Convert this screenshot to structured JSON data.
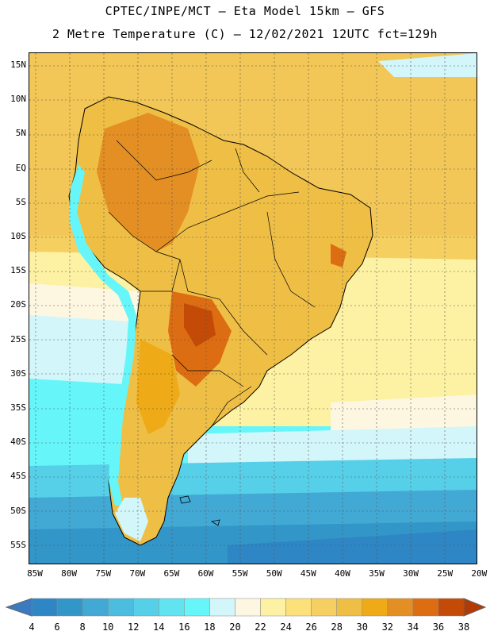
{
  "title_line1": "CPTEC/INPE/MCT –  Eta Model 15km – GFS",
  "title_line2": "2 Metre Temperature (C) – 12/02/2021 12UTC fct=129h",
  "lat_labels": [
    "15N",
    "10N",
    "5N",
    "EQ",
    "5S",
    "10S",
    "15S",
    "20S",
    "25S",
    "30S",
    "35S",
    "40S",
    "45S",
    "50S",
    "55S"
  ],
  "lon_labels": [
    "85W",
    "80W",
    "75W",
    "70W",
    "65W",
    "60W",
    "55W",
    "50W",
    "45W",
    "40W",
    "35W",
    "30W",
    "25W",
    "20W"
  ],
  "colorbar": {
    "labels": [
      "4",
      "6",
      "8",
      "10",
      "12",
      "14",
      "16",
      "18",
      "20",
      "22",
      "24",
      "26",
      "28",
      "30",
      "32",
      "34",
      "36",
      "38"
    ],
    "colors": [
      "#3a7bbf",
      "#2f86c4",
      "#3296c8",
      "#41a9d4",
      "#4cbcdf",
      "#56cfe8",
      "#61e4ef",
      "#66f6f9",
      "#d3f6fb",
      "#fdf7e1",
      "#fdf1a3",
      "#fce07a",
      "#f5cf5f",
      "#efbe45",
      "#eeaa17",
      "#e48f23",
      "#dd6d12",
      "#c34b07",
      "#b13a05"
    ]
  }
}
